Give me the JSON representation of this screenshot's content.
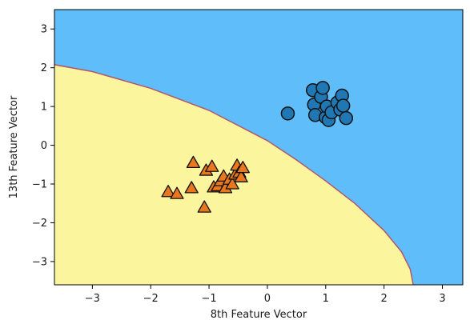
{
  "chart_data": {
    "type": "scatter",
    "title": "",
    "xlabel": "8th Feature Vector",
    "ylabel": "13th Feature Vector",
    "xlim": [
      -3.65,
      3.35
    ],
    "ylim": [
      -3.6,
      3.5
    ],
    "x_ticks": [
      -3,
      -2,
      -1,
      0,
      1,
      2,
      3
    ],
    "y_ticks": [
      -3,
      -2,
      -1,
      0,
      1,
      2,
      3
    ],
    "x_tick_labels": [
      "−3",
      "−2",
      "−1",
      "0",
      "1",
      "2",
      "3"
    ],
    "y_tick_labels": [
      "−3",
      "−2",
      "−1",
      "0",
      "1",
      "2",
      "3"
    ],
    "grid": false,
    "legend": "none",
    "regions": [
      {
        "name": "class-0-region",
        "color": "#fbf59d"
      },
      {
        "name": "class-1-region",
        "color": "#5fbefa"
      }
    ],
    "decision_boundary": {
      "color": "#b0566c",
      "points": [
        [
          -3.65,
          2.08
        ],
        [
          -3.0,
          1.9
        ],
        [
          -2.0,
          1.47
        ],
        [
          -1.0,
          0.9
        ],
        [
          0.0,
          0.12
        ],
        [
          0.5,
          -0.38
        ],
        [
          1.0,
          -0.92
        ],
        [
          1.5,
          -1.5
        ],
        [
          2.0,
          -2.2
        ],
        [
          2.3,
          -2.75
        ],
        [
          2.45,
          -3.2
        ],
        [
          2.5,
          -3.6
        ]
      ]
    },
    "series": [
      {
        "marker": "triangle",
        "color": "#e8771e",
        "points": [
          [
            -1.7,
            -1.2
          ],
          [
            -1.55,
            -1.25
          ],
          [
            -1.3,
            -1.1
          ],
          [
            -1.27,
            -0.45
          ],
          [
            -1.08,
            -1.6
          ],
          [
            -1.05,
            -0.65
          ],
          [
            -0.95,
            -0.55
          ],
          [
            -0.92,
            -1.08
          ],
          [
            -0.85,
            -1.05
          ],
          [
            -0.8,
            -0.92
          ],
          [
            -0.75,
            -0.8
          ],
          [
            -0.72,
            -1.1
          ],
          [
            -0.65,
            -0.88
          ],
          [
            -0.6,
            -1.0
          ],
          [
            -0.55,
            -0.75
          ],
          [
            -0.52,
            -0.52
          ],
          [
            -0.48,
            -0.7
          ],
          [
            -0.45,
            -0.82
          ],
          [
            -0.42,
            -0.58
          ]
        ]
      },
      {
        "marker": "circle",
        "color": "#1f77b4",
        "points": [
          [
            0.35,
            0.82
          ],
          [
            0.78,
            1.42
          ],
          [
            0.8,
            1.05
          ],
          [
            0.82,
            0.78
          ],
          [
            0.92,
            1.25
          ],
          [
            0.95,
            1.48
          ],
          [
            1.0,
            0.72
          ],
          [
            1.02,
            1.0
          ],
          [
            1.05,
            0.65
          ],
          [
            1.1,
            0.85
          ],
          [
            1.2,
            1.1
          ],
          [
            1.25,
            0.92
          ],
          [
            1.28,
            1.28
          ],
          [
            1.3,
            1.02
          ],
          [
            1.35,
            0.7
          ]
        ]
      }
    ]
  }
}
